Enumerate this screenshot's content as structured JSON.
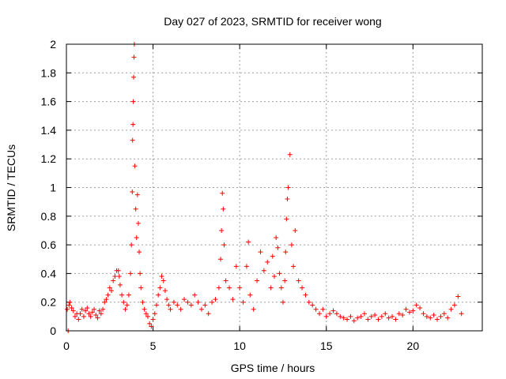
{
  "chart_data": {
    "type": "scatter",
    "title": "Day 027 of 2023, SRMTID for receiver wong",
    "xlabel": "GPS time / hours",
    "ylabel": "SRMTID / TECUs",
    "xlim": [
      0,
      24
    ],
    "ylim": [
      0,
      2
    ],
    "xticks": [
      0,
      5,
      10,
      15,
      20
    ],
    "xtick_labels": [
      "0",
      "5",
      "10",
      "15",
      "20"
    ],
    "yticks": [
      0,
      0.2,
      0.4,
      0.6,
      0.8,
      1,
      1.2,
      1.4,
      1.6,
      1.8,
      2
    ],
    "ytick_labels": [
      "0",
      "0.2",
      "0.4",
      "0.6",
      "0.8",
      "1",
      "1.2",
      "1.4",
      "1.6",
      "1.8",
      "2"
    ],
    "grid": true,
    "marker": "+",
    "color": "#ff0000",
    "series": [
      {
        "name": "SRMTID",
        "x": [
          0.05,
          0.1,
          0.15,
          0.2,
          0.3,
          0.4,
          0.5,
          0.6,
          0.7,
          0.8,
          0.9,
          1.0,
          1.1,
          1.2,
          1.3,
          1.4,
          1.5,
          1.6,
          1.7,
          1.8,
          1.9,
          2.0,
          2.1,
          2.2,
          2.3,
          2.4,
          2.5,
          2.6,
          2.7,
          2.8,
          2.9,
          3.0,
          3.05,
          3.1,
          3.2,
          3.3,
          3.4,
          3.5,
          3.6,
          3.7,
          3.75,
          3.8,
          3.82,
          3.84,
          3.86,
          3.88,
          3.9,
          3.92,
          3.95,
          4.0,
          4.05,
          4.1,
          4.15,
          4.2,
          4.25,
          4.3,
          4.4,
          4.5,
          4.6,
          4.7,
          4.8,
          4.9,
          5.0,
          5.1,
          5.2,
          5.3,
          5.4,
          5.5,
          5.6,
          5.7,
          5.8,
          5.9,
          6.0,
          6.2,
          6.4,
          6.6,
          6.8,
          7.0,
          7.2,
          7.4,
          7.6,
          7.8,
          8.0,
          8.2,
          8.4,
          8.6,
          8.8,
          8.9,
          8.95,
          9.0,
          9.05,
          9.1,
          9.2,
          9.4,
          9.6,
          9.8,
          10.0,
          10.2,
          10.4,
          10.5,
          10.6,
          10.8,
          11.0,
          11.2,
          11.4,
          11.6,
          11.8,
          11.9,
          12.0,
          12.1,
          12.2,
          12.3,
          12.4,
          12.5,
          12.6,
          12.65,
          12.7,
          12.75,
          12.8,
          12.9,
          13.0,
          13.1,
          13.2,
          13.4,
          13.6,
          13.8,
          14.0,
          14.2,
          14.4,
          14.6,
          14.8,
          15.0,
          15.2,
          15.4,
          15.6,
          15.8,
          16.0,
          16.2,
          16.4,
          16.6,
          16.8,
          17.0,
          17.2,
          17.4,
          17.6,
          17.8,
          18.0,
          18.2,
          18.4,
          18.6,
          18.8,
          19.0,
          19.2,
          19.4,
          19.6,
          19.8,
          20.0,
          20.2,
          20.4,
          20.6,
          20.8,
          21.0,
          21.2,
          21.4,
          21.6,
          21.8,
          22.0,
          22.2,
          22.4,
          22.6,
          22.8
        ],
        "y": [
          0.15,
          0.0,
          0.18,
          0.2,
          0.16,
          0.14,
          0.1,
          0.12,
          0.08,
          0.12,
          0.15,
          0.1,
          0.14,
          0.16,
          0.12,
          0.1,
          0.13,
          0.15,
          0.11,
          0.09,
          0.14,
          0.12,
          0.15,
          0.2,
          0.22,
          0.25,
          0.3,
          0.28,
          0.35,
          0.38,
          0.42,
          0.42,
          0.38,
          0.32,
          0.25,
          0.2,
          0.15,
          0.18,
          0.25,
          0.4,
          0.6,
          0.97,
          1.33,
          1.44,
          1.6,
          1.77,
          1.91,
          2.0,
          1.15,
          0.85,
          0.65,
          0.95,
          0.75,
          0.55,
          0.4,
          0.3,
          0.2,
          0.15,
          0.12,
          0.1,
          0.05,
          0.03,
          0.08,
          0.12,
          0.18,
          0.25,
          0.3,
          0.38,
          0.35,
          0.28,
          0.22,
          0.18,
          0.15,
          0.2,
          0.18,
          0.15,
          0.22,
          0.2,
          0.18,
          0.25,
          0.2,
          0.15,
          0.18,
          0.12,
          0.2,
          0.22,
          0.3,
          0.5,
          0.7,
          0.96,
          0.85,
          0.6,
          0.35,
          0.3,
          0.22,
          0.45,
          0.3,
          0.2,
          0.45,
          0.62,
          0.25,
          0.15,
          0.35,
          0.55,
          0.42,
          0.48,
          0.3,
          0.52,
          0.38,
          0.65,
          0.58,
          0.4,
          0.3,
          0.2,
          0.35,
          0.55,
          0.78,
          0.92,
          1.0,
          1.23,
          0.6,
          0.45,
          0.7,
          0.35,
          0.3,
          0.25,
          0.2,
          0.18,
          0.15,
          0.12,
          0.15,
          0.1,
          0.12,
          0.14,
          0.12,
          0.1,
          0.09,
          0.08,
          0.1,
          0.07,
          0.09,
          0.1,
          0.12,
          0.08,
          0.1,
          0.11,
          0.08,
          0.1,
          0.12,
          0.09,
          0.1,
          0.08,
          0.12,
          0.11,
          0.15,
          0.13,
          0.14,
          0.18,
          0.16,
          0.12,
          0.1,
          0.09,
          0.11,
          0.08,
          0.1,
          0.12,
          0.09,
          0.15,
          0.18,
          0.24,
          0.12
        ]
      }
    ]
  }
}
